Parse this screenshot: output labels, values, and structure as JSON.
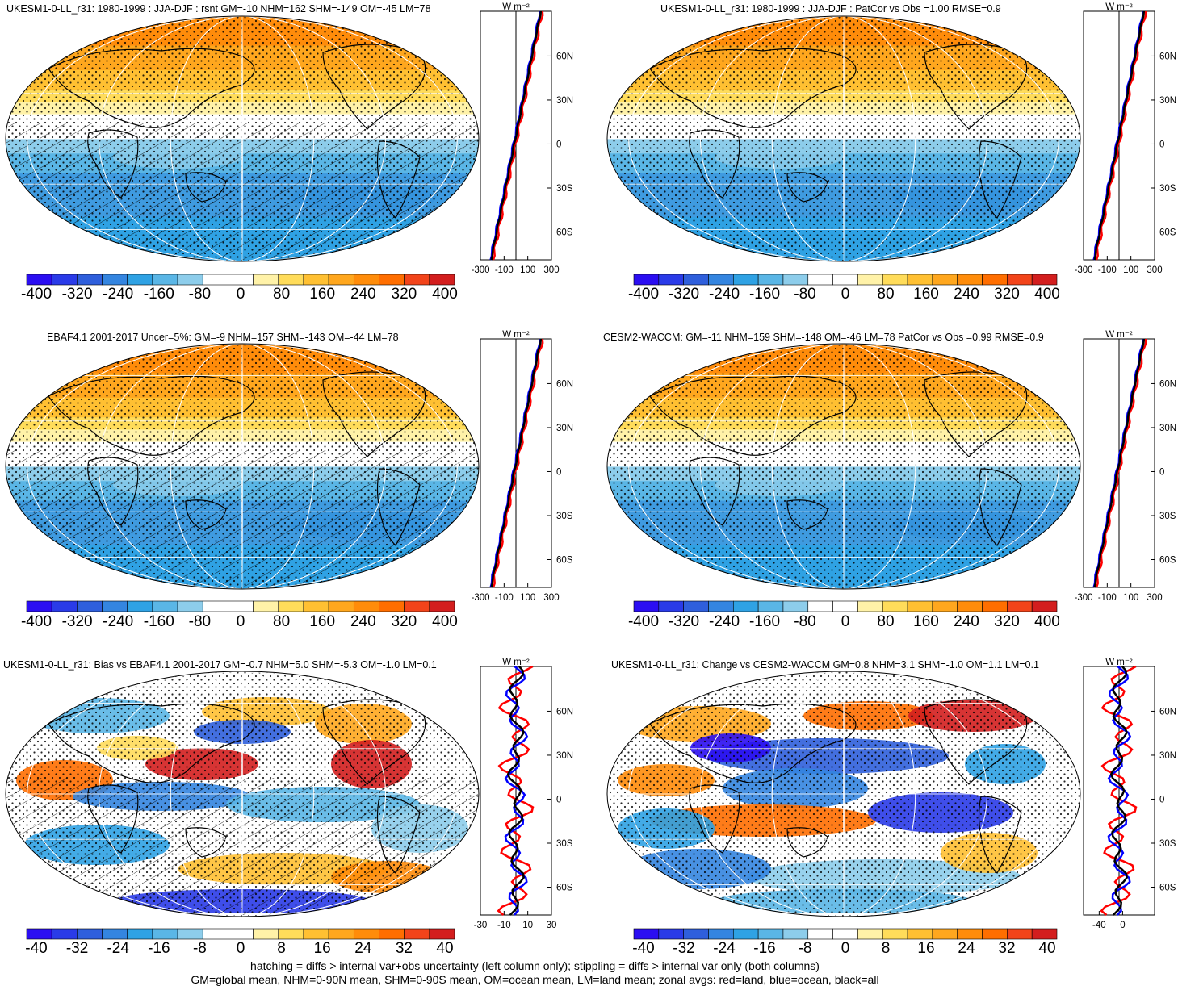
{
  "panels": [
    {
      "id": "p1",
      "title": "UKESM1-0-LL_r31: 1980-1999 : JJA-DJF : rsnt GM=-10 NHM=162 SHM=-149 OM=-45 LM=78",
      "kind": "abs",
      "hatch": true,
      "colorbar": [
        "-400",
        "-320",
        "-240",
        "-160",
        "-80",
        "0",
        "80",
        "160",
        "240",
        "320",
        "400"
      ],
      "zonal_xticks": [
        "-300",
        "-100",
        "100",
        "300"
      ]
    },
    {
      "id": "p2",
      "title": "UKESM1-0-LL_r31: 1980-1999 : JJA-DJF : PatCor vs Obs =1.00 RMSE=0.9",
      "kind": "abs",
      "hatch": false,
      "colorbar": [
        "-400",
        "-320",
        "-240",
        "-160",
        "-80",
        "0",
        "80",
        "160",
        "240",
        "320",
        "400"
      ],
      "zonal_xticks": [
        "-300",
        "-100",
        "100",
        "300"
      ]
    },
    {
      "id": "p3",
      "title": "EBAF4.1 2001-2017 Uncer=5%: GM=-9 NHM=157 SHM=-143 OM=-44 LM=78",
      "kind": "abs",
      "hatch": true,
      "colorbar": [
        "-400",
        "-320",
        "-240",
        "-160",
        "-80",
        "0",
        "80",
        "160",
        "240",
        "320",
        "400"
      ],
      "zonal_xticks": [
        "-300",
        "-100",
        "100",
        "300"
      ]
    },
    {
      "id": "p4",
      "title": "CESM2-WACCM: GM=-11 NHM=159 SHM=-148 OM=-46 LM=78 PatCor vs Obs =0.99 RMSE=0.9",
      "kind": "abs",
      "hatch": false,
      "colorbar": [
        "-400",
        "-320",
        "-240",
        "-160",
        "-80",
        "0",
        "80",
        "160",
        "240",
        "320",
        "400"
      ],
      "zonal_xticks": [
        "-300",
        "-100",
        "100",
        "300"
      ]
    },
    {
      "id": "p5",
      "title": "UKESM1-0-LL_r31: Bias vs EBAF4.1 2001-2017 GM=-0.7 NHM=5.0 SHM=-5.3 OM=-1.0 LM=0.1",
      "kind": "diff",
      "hatch": true,
      "colorbar": [
        "-40",
        "-32",
        "-24",
        "-16",
        "-8",
        "0",
        "8",
        "16",
        "24",
        "32",
        "40"
      ],
      "zonal_xticks": [
        "-30",
        "-10",
        "10",
        "30"
      ]
    },
    {
      "id": "p6",
      "title": "UKESM1-0-LL_r31: Change vs CESM2-WACCM GM=0.8 NHM=3.1 SHM=-1.0 OM=1.1 LM=0.1",
      "kind": "diff",
      "hatch": false,
      "colorbar": [
        "-40",
        "-32",
        "-24",
        "-16",
        "-8",
        "0",
        "8",
        "16",
        "24",
        "32",
        "40"
      ],
      "zonal_xticks": [
        "-40",
        "0"
      ]
    }
  ],
  "units": "W m⁻²",
  "lat_labels": [
    "60N",
    "30N",
    "0",
    "30S",
    "60S"
  ],
  "colors": {
    "palette": [
      "#2b0ef2",
      "#2a3be8",
      "#2f5fdc",
      "#3485e0",
      "#2fa2e4",
      "#5ab6e6",
      "#8dcdeb",
      "#ffffff",
      "#ffffff",
      "#fff2a8",
      "#ffdc5a",
      "#ffc032",
      "#ffa71e",
      "#ff8c0a",
      "#ff6e00",
      "#f2441a",
      "#d31e1e"
    ],
    "zonal_land": "#ff0000",
    "zonal_ocean": "#0000ff",
    "zonal_all": "#000000"
  },
  "footer": {
    "line1": "hatching = diffs > internal var+obs uncertainty (left column only); stippling = diffs > internal var only (both columns)",
    "line2": "GM=global mean, NHM=0-90N mean, SHM=0-90S mean, OM=ocean mean, LM=land mean; zonal avgs: red=land, blue=ocean, black=all"
  }
}
